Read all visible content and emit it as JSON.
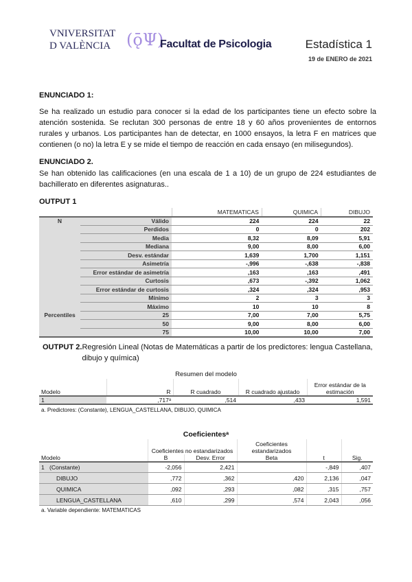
{
  "header": {
    "logo_university": "VNIVERSITAT DE VALÈNCIA",
    "logo_faculty": "Facultat de Psicologia",
    "title": "Estadística 1",
    "date": "19 de ENERO de 2021"
  },
  "enunciado1": {
    "heading": "ENUNCIADO 1:",
    "text": "Se ha realizado un estudio para conocer si la edad de los participantes tiene un efecto sobre la atención sostenida. Se reclutan 300 personas de entre 18 y 60 años provenientes de entornos rurales y urbanos. Los participantes han de detectar, en 1000 ensayos, la letra F en matrices que contienen (o no) la letra E y se mide el tiempo de reacción en cada ensayo (en milisegundos)."
  },
  "enunciado2": {
    "heading": "ENUNCIADO 2.",
    "text": "Se han obtenido las calificaciones (en una escala de 1 a 10) de un grupo de 224 estudiantes de bachillerato en diferentes asignaturas.."
  },
  "output1": {
    "heading": "OUTPUT 1",
    "columns": [
      "MATEMATICAS",
      "QUIMICA",
      "DIBUJO"
    ],
    "rows": [
      {
        "group": "N",
        "label": "Válido",
        "values": [
          "224",
          "224",
          "22"
        ]
      },
      {
        "group": "",
        "label": "Perdidos",
        "values": [
          "0",
          "0",
          "202"
        ]
      },
      {
        "group": "",
        "label": "Media",
        "values": [
          "8,32",
          "8,09",
          "5,91"
        ]
      },
      {
        "group": "",
        "label": "Mediana",
        "values": [
          "9,00",
          "8,00",
          "6,00"
        ]
      },
      {
        "group": "",
        "label": "Desv. estándar",
        "values": [
          "1,639",
          "1,700",
          "1,151"
        ]
      },
      {
        "group": "",
        "label": "Asimetría",
        "values": [
          "-,996",
          "-,638",
          "-,838"
        ]
      },
      {
        "group": "",
        "label": "Error estándar de asimetría",
        "values": [
          ",163",
          ",163",
          ",491"
        ]
      },
      {
        "group": "",
        "label": "Curtosis",
        "values": [
          ",673",
          "-,392",
          "1,062"
        ]
      },
      {
        "group": "",
        "label": "Error estándar de curtosis",
        "values": [
          ",324",
          ",324",
          ",953"
        ]
      },
      {
        "group": "",
        "label": "Mínimo",
        "values": [
          "2",
          "3",
          "3"
        ]
      },
      {
        "group": "",
        "label": "Máximo",
        "values": [
          "10",
          "10",
          "8"
        ]
      },
      {
        "group": "Percentiles",
        "label": "25",
        "values": [
          "7,00",
          "7,00",
          "5,75"
        ]
      },
      {
        "group": "",
        "label": "50",
        "values": [
          "9,00",
          "8,00",
          "6,00"
        ]
      },
      {
        "group": "",
        "label": "75",
        "values": [
          "10,00",
          "10,00",
          "7,00"
        ]
      }
    ]
  },
  "output2": {
    "heading": "OUTPUT 2.",
    "description": "Regresión Lineal (Notas de Matemáticas a partir de los predictores: lengua Castellana, dibujo y química)",
    "summary": {
      "title": "Resumen del modelo",
      "columns": [
        "Modelo",
        "R",
        "R cuadrado",
        "R cuadrado ajustado",
        "Error estándar de la estimación"
      ],
      "rows": [
        [
          "1",
          ",717ᵃ",
          ",514",
          ",433",
          "1,591"
        ]
      ],
      "note": "a. Predictores: (Constante), LENGUA_CASTELLANA, DIBUJO, QUIMICA"
    },
    "coefficients": {
      "title": "Coeficientesᵃ",
      "group_headers": [
        "Coeficientes no estandarizados",
        "Coeficientes estandarizados"
      ],
      "columns": [
        "Modelo",
        "B",
        "Desv. Error",
        "Beta",
        "t",
        "Sig."
      ],
      "rows": [
        [
          "1",
          "(Constante)",
          "-2,056",
          "2,421",
          "",
          "-,849",
          ",407"
        ],
        [
          "",
          "DIBUJO",
          ",772",
          ",362",
          ",420",
          "2,136",
          ",047"
        ],
        [
          "",
          "QUIMICA",
          ",092",
          ",293",
          ",082",
          ",315",
          ",757"
        ],
        [
          "",
          "LENGUA_CASTELLANA",
          ",610",
          ",299",
          ",574",
          "2,043",
          ",056"
        ]
      ],
      "note": "a. Variable dependiente: MATEMATICAS"
    }
  }
}
